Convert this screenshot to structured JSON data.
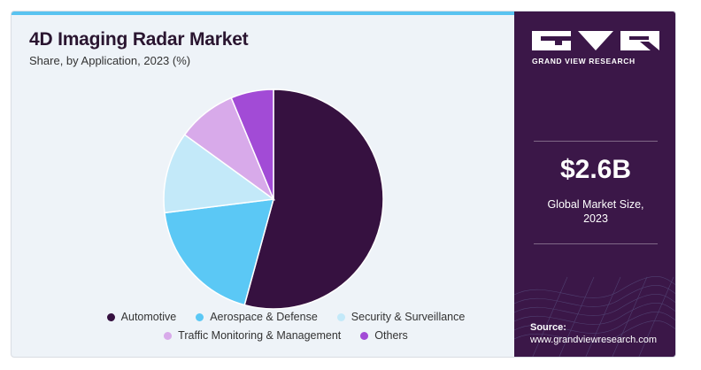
{
  "header": {
    "title": "4D Imaging Radar Market",
    "subtitle": "Share, by Application, 2023 (%)"
  },
  "side": {
    "brand": "GRAND VIEW RESEARCH",
    "market_value": "$2.6B",
    "market_label_line1": "Global Market Size,",
    "market_label_line2": "2023",
    "source_title": "Source:",
    "source_url": "www.grandviewresearch.com"
  },
  "colors": {
    "accent_bar": "#59c3f0",
    "side_bg": "#3b1748"
  },
  "chart_data": {
    "type": "pie",
    "title": "4D Imaging Radar Market",
    "subtitle": "Share, by Application, 2023 (%)",
    "legend_placement": "bottom",
    "slices": [
      {
        "name": "Automotive",
        "value": 53.5,
        "color": "#361140"
      },
      {
        "name": "Aerospace & Defense",
        "value": 18.5,
        "color": "#5bc8f5"
      },
      {
        "name": "Security & Surveillance",
        "value": 11.8,
        "color": "#c3e9f9"
      },
      {
        "name": "Traffic Monitoring & Management",
        "value": 8.6,
        "color": "#d8aaea"
      },
      {
        "name": "Others",
        "value": 6.2,
        "color": "#a24bd6"
      }
    ]
  }
}
